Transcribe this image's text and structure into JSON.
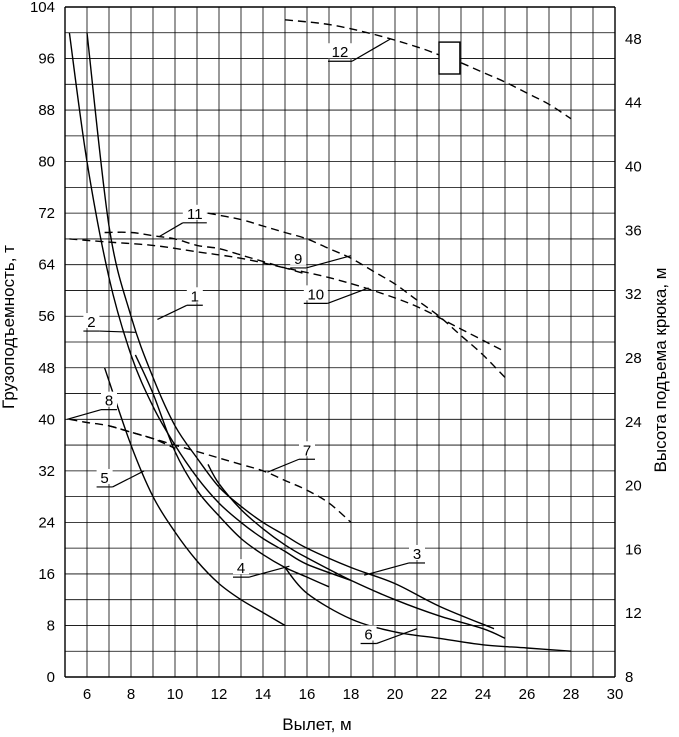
{
  "chart_data": {
    "type": "line",
    "title": "",
    "xlabel": "Вылет, м",
    "ylabel": "Грузоподъемность, т",
    "y2label": "Высота подъема крюка, м",
    "xlim": [
      5,
      30
    ],
    "ylim": [
      0,
      104
    ],
    "y2_scale": {
      "value_at_y0": 8,
      "value_at_y104": 50
    },
    "grid": true,
    "legend": "none",
    "x_ticks": [
      "6",
      "8",
      "10",
      "12",
      "14",
      "16",
      "18",
      "20",
      "22",
      "24",
      "26",
      "28",
      "30"
    ],
    "y_ticks": [
      "0",
      "8",
      "16",
      "24",
      "32",
      "40",
      "48",
      "56",
      "64",
      "72",
      "80",
      "88",
      "96",
      "104"
    ],
    "y2_ticks": [
      "8",
      "12",
      "16",
      "20",
      "24",
      "28",
      "32",
      "36",
      "40",
      "44",
      "48"
    ],
    "series": [
      {
        "name": "1",
        "axis": "left",
        "style": "solid",
        "x": [
          6,
          7,
          8,
          9,
          10,
          11,
          12,
          13,
          14,
          15,
          16,
          18,
          20,
          22,
          24.5
        ],
        "y": [
          100,
          70,
          56,
          46.5,
          39,
          34,
          29.5,
          26.5,
          24,
          22,
          20,
          17,
          14.5,
          11,
          7.5
        ]
      },
      {
        "name": "2",
        "axis": "left",
        "style": "solid",
        "x": [
          5.2,
          6,
          7,
          8,
          9,
          10,
          11,
          12,
          13,
          14,
          15,
          16,
          18
        ],
        "y": [
          100,
          80,
          62,
          50,
          42,
          36,
          31,
          27,
          24,
          21.5,
          19.5,
          17.5,
          15
        ]
      },
      {
        "name": "3",
        "axis": "left",
        "style": "solid",
        "x": [
          11.5,
          12,
          13,
          14,
          15,
          16,
          18,
          20,
          22,
          24,
          25
        ],
        "y": [
          33,
          30,
          26,
          23,
          20.5,
          18.5,
          15,
          12,
          9.5,
          7.5,
          6
        ]
      },
      {
        "name": "4",
        "axis": "left",
        "style": "solid",
        "x": [
          8.2,
          9,
          10,
          11,
          12,
          13,
          14,
          15,
          16,
          17
        ],
        "y": [
          50,
          44,
          35,
          29,
          25,
          21.5,
          19,
          17,
          15.5,
          14
        ]
      },
      {
        "name": "5",
        "axis": "left",
        "style": "solid",
        "x": [
          6.8,
          8,
          9,
          10,
          11,
          12,
          13,
          14,
          15
        ],
        "y": [
          48,
          36,
          28,
          22.5,
          18,
          14.5,
          12,
          10,
          8
        ]
      },
      {
        "name": "6",
        "axis": "left",
        "style": "solid",
        "x": [
          15,
          16,
          18,
          20,
          22,
          24,
          26,
          28
        ],
        "y": [
          17,
          13,
          9,
          7,
          6,
          5,
          4.5,
          4
        ]
      },
      {
        "name": "7",
        "axis": "left",
        "style": "dashed",
        "x": [
          7,
          8,
          9,
          10,
          11,
          12,
          13,
          14,
          15,
          16,
          17,
          18
        ],
        "y": [
          39,
          38,
          37,
          36,
          35,
          34,
          33,
          32,
          30.5,
          29,
          27,
          24
        ]
      },
      {
        "name": "8",
        "axis": "left",
        "style": "dashed",
        "x": [
          5.2,
          6,
          7,
          8,
          9,
          10
        ],
        "y": [
          40,
          39.5,
          39,
          38,
          37,
          35.5
        ]
      },
      {
        "name": "9",
        "axis": "left",
        "style": "dashed",
        "x": [
          11.5,
          13,
          14,
          15,
          16,
          17,
          18,
          19,
          20,
          21,
          22,
          23,
          24,
          25
        ],
        "y": [
          72,
          71,
          70,
          69,
          68,
          66.5,
          65,
          63,
          61,
          58.5,
          56,
          53,
          50,
          46.5
        ]
      },
      {
        "name": "10",
        "axis": "left",
        "style": "dashed",
        "x": [
          5.2,
          7,
          9,
          11,
          13,
          15,
          17,
          19,
          21,
          23,
          25
        ],
        "y": [
          68,
          67.5,
          67,
          66,
          65,
          63.5,
          62,
          60,
          57.5,
          54,
          50.5
        ]
      },
      {
        "name": "11",
        "axis": "left",
        "style": "dashed",
        "x": [
          6.8,
          8,
          9,
          10,
          11,
          12,
          13,
          14,
          15,
          16
        ],
        "y": [
          69,
          69,
          68.5,
          68,
          67,
          66.5,
          65.5,
          64.5,
          63.5,
          62.5
        ]
      },
      {
        "name": "12",
        "axis": "right",
        "style": "dashed",
        "x": [
          15,
          17,
          19,
          21,
          22,
          23,
          24,
          25,
          26,
          27,
          28
        ],
        "y": [
          49.2,
          48.9,
          48.3,
          47.5,
          47,
          46.5,
          45.9,
          45.3,
          44.6,
          43.9,
          43
        ]
      }
    ],
    "annotations": {
      "callouts": [
        {
          "text": "1",
          "series": "1",
          "anchor": [
            9.2,
            55.5
          ],
          "label": [
            10.9,
            57.7
          ]
        },
        {
          "text": "2",
          "series": "2",
          "anchor": [
            8.2,
            53.5
          ],
          "label": [
            6.2,
            53.7
          ]
        },
        {
          "text": "3",
          "series": "3",
          "anchor": [
            18.6,
            15.8
          ],
          "label": [
            21,
            17.7
          ]
        },
        {
          "text": "4",
          "series": "4",
          "anchor": [
            15.2,
            17.2
          ],
          "label": [
            13,
            15.5
          ]
        },
        {
          "text": "5",
          "series": "5",
          "anchor": [
            8.6,
            32
          ],
          "label": [
            6.8,
            29.5
          ]
        },
        {
          "text": "6",
          "series": "6",
          "anchor": [
            21,
            7.5
          ],
          "label": [
            18.8,
            5.2
          ]
        },
        {
          "text": "7",
          "series": "7",
          "anchor": [
            14.2,
            31.8
          ],
          "label": [
            16,
            33.8
          ]
        },
        {
          "text": "8",
          "series": "8",
          "anchor": [
            5.1,
            40
          ],
          "label": [
            7,
            41.5
          ]
        },
        {
          "text": "9",
          "series": "9",
          "anchor": [
            18,
            65.4
          ],
          "label": [
            15.6,
            63.5
          ]
        },
        {
          "text": "10",
          "series": "10",
          "anchor": [
            18.8,
            60.4
          ],
          "label": [
            16.4,
            58
          ]
        },
        {
          "text": "11",
          "series": "11",
          "anchor": [
            9.3,
            68.4
          ],
          "label": [
            10.9,
            70.5
          ]
        },
        {
          "text": "12",
          "series": "12",
          "anchor": [
            19.8,
            48.0
          ],
          "label": [
            17.5,
            46.6
          ]
        }
      ],
      "marker_box": {
        "x": [
          22,
          22.95
        ],
        "y": [
          45.8,
          47.8
        ],
        "axis": "right"
      }
    }
  }
}
